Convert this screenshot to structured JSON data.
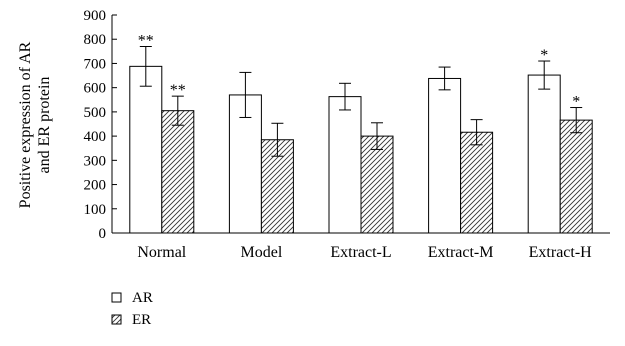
{
  "chart_data": {
    "type": "bar",
    "title": "",
    "ylabel_lines": [
      "Positive expression of AR",
      "and ER protein"
    ],
    "xlabel": "",
    "ylim": [
      0,
      900
    ],
    "yticks": [
      0,
      100,
      200,
      300,
      400,
      500,
      600,
      700,
      800,
      900
    ],
    "categories": [
      "Normal",
      "Model",
      "Extract-L",
      "Extract-M",
      "Extract-H"
    ],
    "series": [
      {
        "name": "AR",
        "values": [
          688,
          570,
          563,
          638,
          652
        ],
        "errors": [
          82,
          93,
          55,
          47,
          58
        ],
        "significance": [
          "**",
          "",
          "",
          "",
          "*"
        ],
        "fill": "#ffffff",
        "pattern": "none"
      },
      {
        "name": "ER",
        "values": [
          505,
          385,
          400,
          416,
          466
        ],
        "errors": [
          60,
          68,
          55,
          52,
          52
        ],
        "significance": [
          "**",
          "",
          "",
          "",
          "*"
        ],
        "fill": "#ffffff",
        "pattern": "diagonal-hatch"
      }
    ],
    "legend_position": "bottom-left",
    "grid": false,
    "colors": {
      "stroke": "#000000",
      "hatch": "#333333"
    }
  }
}
